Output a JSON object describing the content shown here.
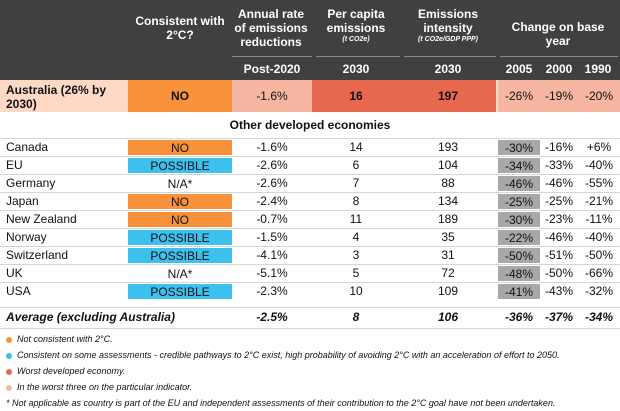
{
  "headers": {
    "consistent": "Consistent with 2°C?",
    "annual_rate": "Annual rate of emissions reductions",
    "per_capita": "Per capita emissions",
    "per_capita_unit": "(t CO2e)",
    "intensity": "Emissions intensity",
    "intensity_unit": "(t CO2e/GDP PPP)",
    "change": "Change on base year",
    "sub_annual": "Post-2020",
    "sub_per_capita": "2030",
    "sub_intensity": "2030",
    "sub_2005": "2005",
    "sub_2000": "2000",
    "sub_1990": "1990"
  },
  "australia": {
    "name": "Australia (26% by 2030)",
    "consistent": "NO",
    "annual_rate": "-1.6%",
    "per_capita": "16",
    "intensity": "197",
    "c2005": "-26%",
    "c2000": "-19%",
    "c1990": "-20%"
  },
  "section_title": "Other developed economies",
  "rows": [
    {
      "name": "Canada",
      "consistent": "NO",
      "status": "no",
      "annual_rate": "-1.6%",
      "per_capita": "14",
      "intensity": "193",
      "c2005": "-30%",
      "c2000": "-16%",
      "c1990": "+6%",
      "grey": true
    },
    {
      "name": "EU",
      "consistent": "POSSIBLE",
      "status": "pos",
      "annual_rate": "-2.6%",
      "per_capita": "6",
      "intensity": "104",
      "c2005": "-34%",
      "c2000": "-33%",
      "c1990": "-40%",
      "grey": true
    },
    {
      "name": "Germany",
      "consistent": "N/A*",
      "status": "na",
      "annual_rate": "-2.6%",
      "per_capita": "7",
      "intensity": "88",
      "c2005": "-46%",
      "c2000": "-46%",
      "c1990": "-55%",
      "grey": true
    },
    {
      "name": "Japan",
      "consistent": "NO",
      "status": "no",
      "annual_rate": "-2.4%",
      "per_capita": "8",
      "intensity": "134",
      "c2005": "-25%",
      "c2000": "-25%",
      "c1990": "-21%",
      "grey": true
    },
    {
      "name": "New Zealand",
      "consistent": "NO",
      "status": "no",
      "annual_rate": "-0.7%",
      "per_capita": "11",
      "intensity": "189",
      "c2005": "-30%",
      "c2000": "-23%",
      "c1990": "-11%",
      "grey": true
    },
    {
      "name": "Norway",
      "consistent": "POSSIBLE",
      "status": "pos",
      "annual_rate": "-1.5%",
      "per_capita": "4",
      "intensity": "35",
      "c2005": "-22%",
      "c2000": "-46%",
      "c1990": "-40%",
      "grey": true
    },
    {
      "name": "Switzerland",
      "consistent": "POSSIBLE",
      "status": "pos",
      "annual_rate": "-4.1%",
      "per_capita": "3",
      "intensity": "31",
      "c2005": "-50%",
      "c2000": "-51%",
      "c1990": "-50%",
      "grey": true
    },
    {
      "name": "UK",
      "consistent": "N/A*",
      "status": "na",
      "annual_rate": "-5.1%",
      "per_capita": "5",
      "intensity": "72",
      "c2005": "-48%",
      "c2000": "-50%",
      "c1990": "-66%",
      "grey": true
    },
    {
      "name": "USA",
      "consistent": "POSSIBLE",
      "status": "pos",
      "annual_rate": "-2.3%",
      "per_capita": "10",
      "intensity": "109",
      "c2005": "-41%",
      "c2000": "-43%",
      "c1990": "-32%",
      "grey": true
    }
  ],
  "average": {
    "name": "Average (excluding Australia)",
    "annual_rate": "-2.5%",
    "per_capita": "8",
    "intensity": "106",
    "c2005": "-36%",
    "c2000": "-37%",
    "c1990": "-34%"
  },
  "legend": [
    {
      "text": "Not consistent with 2°C.",
      "color": "#f7923a"
    },
    {
      "text": "Consistent on some assessments - credible pathways to 2°C exist, high probability of avoiding 2°C with an acceleration of effort to 2050.",
      "color": "#3cc1ef"
    },
    {
      "text": "Worst developed economy.",
      "color": "#e8674f"
    },
    {
      "text": "In the worst three on the particular indicator.",
      "color": "#f7b6a2"
    }
  ],
  "footnote": "* Not applicable as country is part of the EU and independent assessments of their contribution to the 2°C goal have not been undertaken.",
  "colors": {
    "header_bg": "#404040",
    "no": "#f7923a",
    "possible": "#3cc1ef",
    "worst": "#e8674f",
    "worst_three": "#f7b6a2",
    "australia_row": "#ffd9c6",
    "grey_cell": "#a8a8a8"
  }
}
